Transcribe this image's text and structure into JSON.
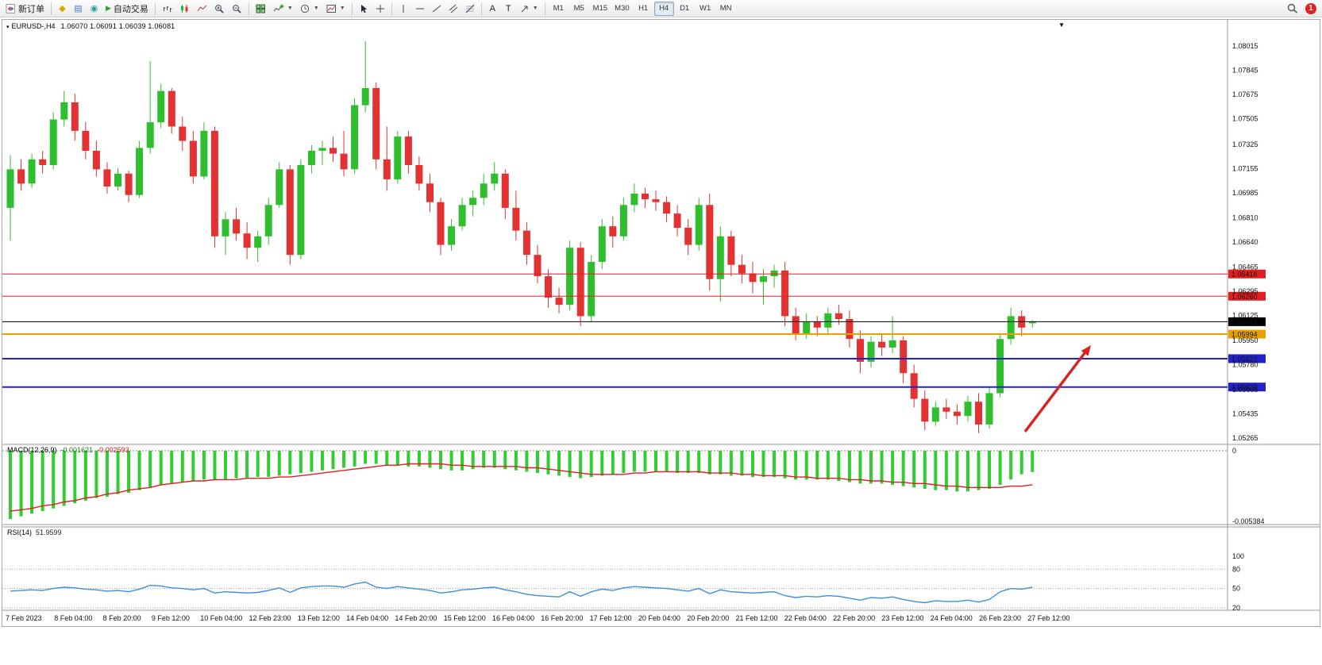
{
  "toolbar": {
    "new_order": "新订单",
    "auto_trading": "自动交易",
    "text_tool": "A",
    "label_tool": "T",
    "timeframes": [
      "M1",
      "M5",
      "M15",
      "M30",
      "H1",
      "H4",
      "D1",
      "W1",
      "MN"
    ],
    "active_timeframe": "H4",
    "notification_count": "1",
    "icons": {
      "new-order-icon": "page-with-red-blue-arrows",
      "market-watch-icon": "◆",
      "data-window-icon": "▤",
      "navigator-icon": "◉",
      "auto-trading-icon": "▶",
      "bar-chart-icon": "svg-bars",
      "candlestick-icon": "svg-candles",
      "line-chart-icon": "svg-line",
      "zoom-in-icon": "svg-magnifier-plus",
      "zoom-out-icon": "svg-magnifier-minus",
      "tile-windows-icon": "svg-tiles",
      "indicators-icon": "svg-plus-curve",
      "periods-icon": "svg-clock",
      "templates-icon": "svg-chart-card",
      "cursor-icon": "svg-pointer",
      "crosshair-icon": "svg-cross",
      "vertical-line-icon": "svg-vline",
      "horizontal-line-icon": "svg-hline",
      "trendline-icon": "svg-diagonal",
      "channel-icon": "svg-double-diagonal",
      "fibonacci-icon": "svg-fibo",
      "arrows-tool-icon": "svg-arrow",
      "search-icon": "svg-magnifier",
      "notification-badge": "1"
    }
  },
  "chart": {
    "symbol_period": "EURUSD-,H4",
    "ohlc_text": "1.06070 1.06091 1.06039 1.06081"
  },
  "chart_data": {
    "type": "candlestick",
    "symbol": "EURUSD-",
    "timeframe": "H4",
    "price_range": {
      "top": 1.08015,
      "bottom": 1.05265
    },
    "price_axis_ticks": [
      "1.08015",
      "1.07845",
      "1.07675",
      "1.07505",
      "1.07325",
      "1.07155",
      "1.06985",
      "1.06810",
      "1.06640",
      "1.06465",
      "1.06295",
      "1.06125",
      "1.05950",
      "1.05780",
      "1.05605",
      "1.05435",
      "1.05265"
    ],
    "levels": [
      {
        "price": 1.06416,
        "label": "1.06416",
        "color": "#e02020",
        "width": 1
      },
      {
        "price": 1.0626,
        "label": "1.06260",
        "color": "#e02020",
        "width": 1
      },
      {
        "price": 1.06081,
        "label": "1.06081",
        "color": "#000000",
        "width": 1
      },
      {
        "price": 1.05994,
        "label": "1.05994",
        "color": "#e8a200",
        "width": 2
      },
      {
        "price": 1.05822,
        "label": "1.05822",
        "color": "#2222cc",
        "width": 2
      },
      {
        "price": 1.05623,
        "label": "1.05623",
        "color": "#2222cc",
        "width": 2
      }
    ],
    "colors": {
      "candle_up": "#2ebe2e",
      "candle_down": "#e23232",
      "macd_bar": "#33cc33",
      "macd_signal": "#e02020",
      "rsi_line": "#3e8ede",
      "arrow": "#d42424"
    },
    "candles": [
      [
        1.0688,
        1.0725,
        1.0665,
        1.0715
      ],
      [
        1.0715,
        1.0722,
        1.07,
        1.0705
      ],
      [
        1.0705,
        1.0726,
        1.0702,
        1.0722
      ],
      [
        1.0722,
        1.0728,
        1.0712,
        1.0718
      ],
      [
        1.0718,
        1.0755,
        1.0715,
        1.075
      ],
      [
        1.075,
        1.077,
        1.0745,
        1.0762
      ],
      [
        1.0762,
        1.0768,
        1.0735,
        1.0742
      ],
      [
        1.0742,
        1.0748,
        1.0722,
        1.0728
      ],
      [
        1.0728,
        1.0735,
        1.071,
        1.0715
      ],
      [
        1.0715,
        1.072,
        1.0698,
        1.0703
      ],
      [
        1.0703,
        1.0716,
        1.07,
        1.0712
      ],
      [
        1.0712,
        1.0714,
        1.0692,
        1.0697
      ],
      [
        1.0697,
        1.0735,
        1.0695,
        1.073
      ],
      [
        1.073,
        1.0791,
        1.0726,
        1.0748
      ],
      [
        1.0748,
        1.0775,
        1.0744,
        1.077
      ],
      [
        1.077,
        1.0772,
        1.074,
        1.0745
      ],
      [
        1.0745,
        1.0752,
        1.0728,
        1.0735
      ],
      [
        1.0735,
        1.0742,
        1.0705,
        1.071
      ],
      [
        1.071,
        1.0748,
        1.0708,
        1.0742
      ],
      [
        1.0742,
        1.0745,
        1.066,
        1.0668
      ],
      [
        1.0668,
        1.0685,
        1.0655,
        1.068
      ],
      [
        1.068,
        1.0688,
        1.0665,
        1.067
      ],
      [
        1.067,
        1.0678,
        1.0652,
        1.066
      ],
      [
        1.066,
        1.0672,
        1.065,
        1.0668
      ],
      [
        1.0668,
        1.0695,
        1.0662,
        1.069
      ],
      [
        1.069,
        1.072,
        1.0688,
        1.0715
      ],
      [
        1.0715,
        1.0718,
        1.0648,
        1.0655
      ],
      [
        1.0655,
        1.0722,
        1.0652,
        1.0718
      ],
      [
        1.0718,
        1.0732,
        1.0712,
        1.0728
      ],
      [
        1.0728,
        1.0735,
        1.0718,
        1.073
      ],
      [
        1.073,
        1.0738,
        1.072,
        1.0726
      ],
      [
        1.0726,
        1.0742,
        1.071,
        1.0715
      ],
      [
        1.0715,
        1.0765,
        1.0712,
        1.076
      ],
      [
        1.076,
        1.0805,
        1.0755,
        1.0772
      ],
      [
        1.0772,
        1.0776,
        1.0715,
        1.0722
      ],
      [
        1.0722,
        1.0745,
        1.07,
        1.0708
      ],
      [
        1.0708,
        1.0742,
        1.0705,
        1.0738
      ],
      [
        1.0738,
        1.0742,
        1.0712,
        1.0718
      ],
      [
        1.0718,
        1.0724,
        1.07,
        1.0705
      ],
      [
        1.0705,
        1.0712,
        1.0685,
        1.0692
      ],
      [
        1.0692,
        1.0695,
        1.0655,
        1.0662
      ],
      [
        1.0662,
        1.068,
        1.0658,
        1.0675
      ],
      [
        1.0675,
        1.0695,
        1.0672,
        1.069
      ],
      [
        1.069,
        1.07,
        1.0682,
        1.0695
      ],
      [
        1.0695,
        1.0712,
        1.069,
        1.0705
      ],
      [
        1.0705,
        1.072,
        1.07,
        1.0712
      ],
      [
        1.0712,
        1.0715,
        1.068,
        1.0688
      ],
      [
        1.0688,
        1.07,
        1.0665,
        1.0672
      ],
      [
        1.0672,
        1.0678,
        1.0648,
        1.0655
      ],
      [
        1.0655,
        1.0662,
        1.0635,
        1.064
      ],
      [
        1.064,
        1.0645,
        1.0618,
        1.0625
      ],
      [
        1.0625,
        1.0632,
        1.0614,
        1.062
      ],
      [
        1.062,
        1.0665,
        1.0616,
        1.066
      ],
      [
        1.066,
        1.0664,
        1.0605,
        1.0612
      ],
      [
        1.0612,
        1.0655,
        1.0608,
        1.065
      ],
      [
        1.065,
        1.068,
        1.0645,
        1.0675
      ],
      [
        1.0675,
        1.0682,
        1.066,
        1.0668
      ],
      [
        1.0668,
        1.0695,
        1.0665,
        1.069
      ],
      [
        1.069,
        1.0705,
        1.0685,
        1.0698
      ],
      [
        1.0698,
        1.0702,
        1.0688,
        1.0694
      ],
      [
        1.0694,
        1.07,
        1.0686,
        1.0692
      ],
      [
        1.0692,
        1.0696,
        1.0678,
        1.0684
      ],
      [
        1.0684,
        1.069,
        1.0668,
        1.0674
      ],
      [
        1.0674,
        1.068,
        1.0655,
        1.0662
      ],
      [
        1.0662,
        1.0695,
        1.0658,
        1.069
      ],
      [
        1.069,
        1.0698,
        1.063,
        1.0638
      ],
      [
        1.0638,
        1.0675,
        1.0622,
        1.0668
      ],
      [
        1.0668,
        1.0672,
        1.064,
        1.0648
      ],
      [
        1.0648,
        1.0655,
        1.0635,
        1.0642
      ],
      [
        1.0642,
        1.065,
        1.0628,
        1.0636
      ],
      [
        1.0636,
        1.0645,
        1.062,
        1.064
      ],
      [
        1.064,
        1.0648,
        1.0632,
        1.0644
      ],
      [
        1.0644,
        1.065,
        1.0605,
        1.0612
      ],
      [
        1.0612,
        1.0618,
        1.0595,
        1.06
      ],
      [
        1.06,
        1.0614,
        1.0596,
        1.0608
      ],
      [
        1.0608,
        1.0612,
        1.0598,
        1.0604
      ],
      [
        1.0604,
        1.0618,
        1.06,
        1.0614
      ],
      [
        1.0614,
        1.062,
        1.0606,
        1.061
      ],
      [
        1.061,
        1.0616,
        1.059,
        1.0596
      ],
      [
        1.0596,
        1.0602,
        1.0572,
        1.058
      ],
      [
        1.058,
        1.0598,
        1.0576,
        1.0594
      ],
      [
        1.0594,
        1.06,
        1.0584,
        1.059
      ],
      [
        1.059,
        1.0612,
        1.0586,
        1.0595
      ],
      [
        1.0595,
        1.0598,
        1.0565,
        1.0572
      ],
      [
        1.0572,
        1.0578,
        1.0548,
        1.0554
      ],
      [
        1.0554,
        1.056,
        1.0532,
        1.0538
      ],
      [
        1.0538,
        1.0552,
        1.0535,
        1.0548
      ],
      [
        1.0548,
        1.0554,
        1.054,
        1.0545
      ],
      [
        1.0545,
        1.055,
        1.0536,
        1.0542
      ],
      [
        1.0542,
        1.0556,
        1.0538,
        1.0552
      ],
      [
        1.0552,
        1.0558,
        1.053,
        1.0536
      ],
      [
        1.0536,
        1.0562,
        1.0533,
        1.0558
      ],
      [
        1.0558,
        1.06,
        1.0555,
        1.0596
      ],
      [
        1.0596,
        1.0618,
        1.0592,
        1.0612
      ],
      [
        1.0612,
        1.0616,
        1.0598,
        1.0604
      ],
      [
        1.0607,
        1.06091,
        1.06039,
        1.06081
      ]
    ],
    "macd": {
      "label": "MACD(12,26,9)",
      "value_main": "-0.001621",
      "value_signal": "-0.002593",
      "axis": [
        "0",
        "-0.005384"
      ],
      "min": -0.005384,
      "histogram": [
        -0.0052,
        -0.005,
        -0.0048,
        -0.0046,
        -0.0044,
        -0.0042,
        -0.004,
        -0.0038,
        -0.0036,
        -0.0035,
        -0.0033,
        -0.0032,
        -0.003,
        -0.0028,
        -0.0026,
        -0.0025,
        -0.0024,
        -0.0023,
        -0.0022,
        -0.0022,
        -0.0022,
        -0.0021,
        -0.0021,
        -0.002,
        -0.002,
        -0.0019,
        -0.0018,
        -0.0017,
        -0.0016,
        -0.0015,
        -0.0014,
        -0.0013,
        -0.0012,
        -0.001,
        -0.001,
        -0.0011,
        -0.0011,
        -0.0012,
        -0.0012,
        -0.0013,
        -0.0014,
        -0.0015,
        -0.0015,
        -0.0014,
        -0.0013,
        -0.0013,
        -0.0014,
        -0.0015,
        -0.0016,
        -0.0017,
        -0.0018,
        -0.0019,
        -0.002,
        -0.0021,
        -0.002,
        -0.0019,
        -0.0018,
        -0.0017,
        -0.0016,
        -0.0016,
        -0.0016,
        -0.0016,
        -0.0017,
        -0.0017,
        -0.0017,
        -0.0018,
        -0.0018,
        -0.0019,
        -0.0019,
        -0.002,
        -0.002,
        -0.002,
        -0.0021,
        -0.0022,
        -0.0022,
        -0.0022,
        -0.0022,
        -0.0023,
        -0.0024,
        -0.0025,
        -0.0025,
        -0.0025,
        -0.0026,
        -0.0027,
        -0.0028,
        -0.0029,
        -0.003,
        -0.003,
        -0.0031,
        -0.0031,
        -0.003,
        -0.0029,
        -0.0026,
        -0.0022,
        -0.0018,
        -0.001621
      ],
      "signal": [
        -0.0046,
        -0.0045,
        -0.0044,
        -0.0042,
        -0.0041,
        -0.0039,
        -0.0038,
        -0.0036,
        -0.0035,
        -0.0033,
        -0.0032,
        -0.003,
        -0.0029,
        -0.0028,
        -0.0026,
        -0.0025,
        -0.0024,
        -0.0023,
        -0.0023,
        -0.0022,
        -0.0022,
        -0.0022,
        -0.0021,
        -0.0021,
        -0.0021,
        -0.002,
        -0.002,
        -0.0019,
        -0.0018,
        -0.0017,
        -0.0016,
        -0.0015,
        -0.0014,
        -0.0013,
        -0.0012,
        -0.0011,
        -0.0011,
        -0.001,
        -0.001,
        -0.001,
        -0.001,
        -0.0011,
        -0.0011,
        -0.0012,
        -0.0012,
        -0.0012,
        -0.0012,
        -0.0012,
        -0.0013,
        -0.0013,
        -0.0014,
        -0.0015,
        -0.0016,
        -0.0017,
        -0.0018,
        -0.0018,
        -0.0018,
        -0.0018,
        -0.0017,
        -0.0017,
        -0.0016,
        -0.0016,
        -0.0016,
        -0.0016,
        -0.0016,
        -0.0017,
        -0.0017,
        -0.0017,
        -0.0018,
        -0.0018,
        -0.0019,
        -0.0019,
        -0.0019,
        -0.002,
        -0.002,
        -0.0021,
        -0.0021,
        -0.0021,
        -0.0022,
        -0.0022,
        -0.0023,
        -0.0023,
        -0.0024,
        -0.0024,
        -0.0025,
        -0.0025,
        -0.0026,
        -0.0027,
        -0.0027,
        -0.0028,
        -0.0028,
        -0.0028,
        -0.0028,
        -0.0027,
        -0.0027,
        -0.002593
      ]
    },
    "rsi": {
      "label": "RSI(14)",
      "value": "51.9599",
      "axis_labels": [
        100,
        80,
        50,
        20
      ],
      "levels": [
        80,
        50,
        20
      ],
      "values": [
        46,
        47,
        48,
        47,
        50,
        52,
        51,
        49,
        48,
        46,
        47,
        45,
        49,
        55,
        54,
        51,
        50,
        48,
        50,
        43,
        45,
        44,
        43,
        44,
        47,
        51,
        44,
        51,
        53,
        54,
        54,
        52,
        57,
        60,
        52,
        50,
        53,
        51,
        49,
        47,
        43,
        45,
        48,
        49,
        51,
        52,
        48,
        45,
        41,
        39,
        38,
        37,
        45,
        38,
        45,
        49,
        47,
        51,
        53,
        52,
        51,
        50,
        48,
        46,
        50,
        42,
        48,
        45,
        44,
        43,
        44,
        45,
        39,
        36,
        38,
        37,
        39,
        38,
        35,
        32,
        36,
        35,
        37,
        33,
        30,
        28,
        31,
        30,
        30,
        32,
        29,
        33,
        45,
        50,
        49,
        51.96
      ]
    },
    "time_labels": [
      "7 Feb 2023",
      "8 Feb 04:00",
      "8 Feb 20:00",
      "9 Feb 12:00",
      "10 Feb 04:00",
      "12 Feb 23:00",
      "13 Feb 12:00",
      "14 Feb 04:00",
      "14 Feb 20:00",
      "15 Feb 12:00",
      "16 Feb 04:00",
      "16 Feb 20:00",
      "17 Feb 12:00",
      "20 Feb 04:00",
      "20 Feb 20:00",
      "21 Feb 12:00",
      "22 Feb 04:00",
      "22 Feb 20:00",
      "23 Feb 12:00",
      "24 Feb 04:00",
      "26 Feb 23:00",
      "27 Feb 12:00"
    ],
    "arrow": {
      "color": "#d42424",
      "direction": "up-right"
    }
  }
}
